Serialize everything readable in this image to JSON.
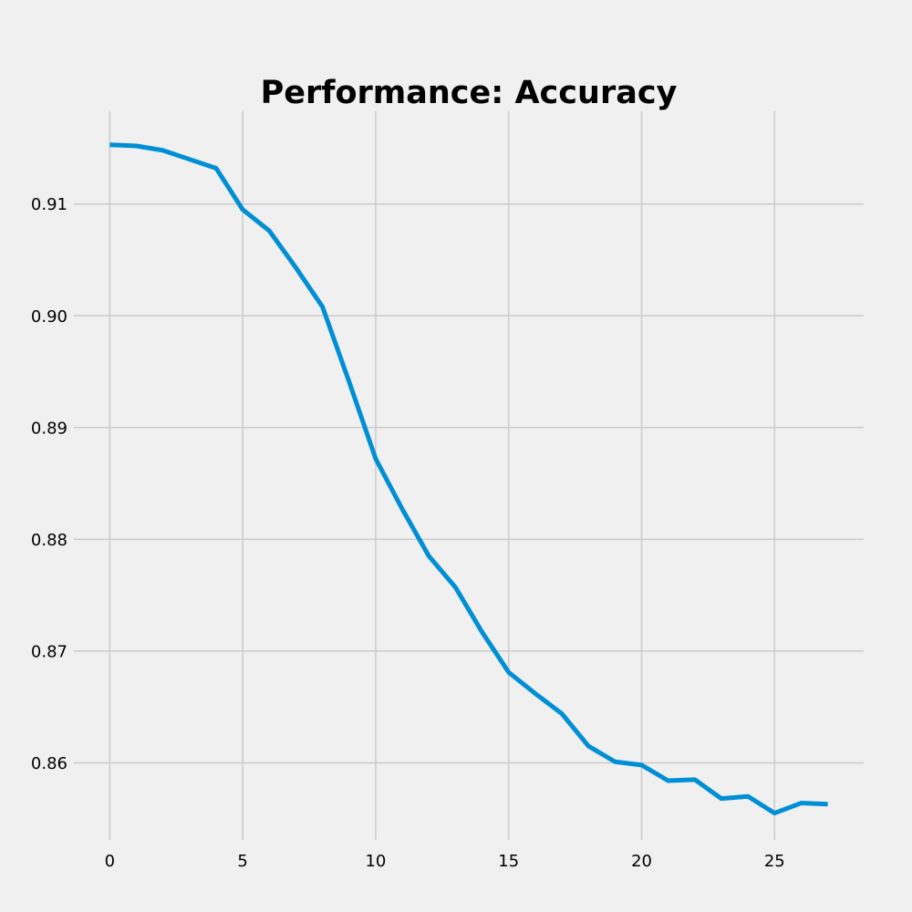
{
  "chart_data": {
    "type": "line",
    "title": "Performance: Accuracy",
    "xlabel": "",
    "ylabel": "",
    "xlim": [
      -1.35,
      28.35
    ],
    "ylim": [
      0.8531,
      0.9183
    ],
    "x_ticks": [
      0,
      5,
      10,
      15,
      20,
      25
    ],
    "x_tick_labels": [
      "0",
      "5",
      "10",
      "15",
      "20",
      "25"
    ],
    "y_ticks": [
      0.86,
      0.87,
      0.88,
      0.89,
      0.9,
      0.91
    ],
    "y_tick_labels": [
      "0.86",
      "0.87",
      "0.88",
      "0.89",
      "0.90",
      "0.91"
    ],
    "grid": true,
    "legend": "none",
    "colors": {
      "background": "#f0f0f0",
      "grid": "#cbcbcb",
      "line": "#008fd5"
    },
    "series": [
      {
        "color": "#008fd5",
        "x": [
          0,
          1,
          2,
          3,
          4,
          5,
          6,
          7,
          8,
          9,
          10,
          11,
          12,
          13,
          14,
          15,
          16,
          17,
          18,
          19,
          20,
          21,
          22,
          23,
          24,
          25,
          26,
          27
        ],
        "values": [
          0.9153,
          0.9152,
          0.9148,
          0.914,
          0.9132,
          0.9095,
          0.9076,
          0.9043,
          0.9008,
          0.8941,
          0.8872,
          0.8827,
          0.8785,
          0.8757,
          0.8717,
          0.8681,
          0.8662,
          0.8644,
          0.8615,
          0.8601,
          0.8598,
          0.8584,
          0.8585,
          0.8568,
          0.857,
          0.8555,
          0.8564,
          0.8563
        ]
      }
    ]
  }
}
